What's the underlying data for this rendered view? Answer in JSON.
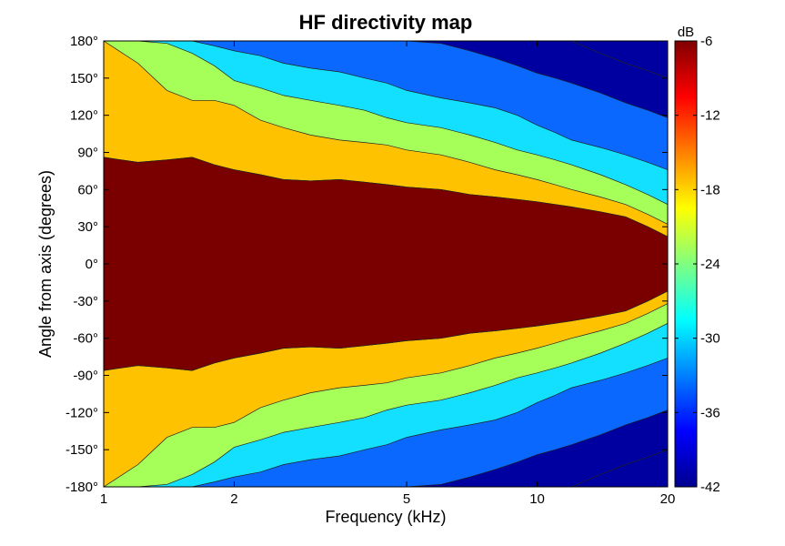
{
  "chart_data": {
    "type": "heatmap",
    "title": "HF directivity map",
    "xlabel": "Frequency (kHz)",
    "ylabel": "Angle from axis (degrees)",
    "x_scale": "log",
    "xlim": [
      1,
      20
    ],
    "ylim": [
      -180,
      180
    ],
    "x_ticks": [
      1,
      2,
      5,
      10,
      20
    ],
    "x_tick_labels": [
      "1",
      "2",
      "5",
      "10",
      "20"
    ],
    "y_ticks": [
      180,
      150,
      120,
      90,
      60,
      30,
      0,
      -30,
      -60,
      -90,
      -120,
      -150,
      -180
    ],
    "y_tick_labels": [
      "180°",
      "150°",
      "120°",
      "90°",
      "60°",
      "30°",
      "0°",
      "-30°",
      "-60°",
      "-90°",
      "-120°",
      "-150°",
      "-180°"
    ],
    "grid": false,
    "colorbar": {
      "unit": "dB",
      "range": [
        -42,
        -6
      ],
      "ticks": [
        -6,
        -12,
        -18,
        -24,
        -30,
        -36,
        -42
      ],
      "tick_labels": [
        "-6",
        "-12",
        "-18",
        "-24",
        "-30",
        "-36",
        "-42"
      ],
      "level_colors": [
        "#7a0000",
        "#ff1a00",
        "#ffc200",
        "#a6ff59",
        "#13e0ff",
        "#0a68ff",
        "#0000a0"
      ],
      "gradient_stops": [
        "#00008f",
        "#0000ff",
        "#0080ff",
        "#00ffff",
        "#80ff80",
        "#ffff00",
        "#ff8000",
        "#ff0000",
        "#800000"
      ]
    },
    "contour_levels_db": [
      -12,
      -18,
      -24,
      -30,
      -36,
      -42
    ],
    "level_color_order": [
      "#7a0000",
      "#ff1a00",
      "#ffc200",
      "#a6ff59",
      "#13e0ff",
      "#0a68ff",
      "#0000a0"
    ],
    "frequency_khz": [
      1,
      1.2,
      1.4,
      1.6,
      1.8,
      2,
      2.3,
      2.6,
      3,
      3.5,
      4,
      4.5,
      5,
      6,
      7,
      8,
      9,
      10,
      11,
      12,
      14,
      16,
      18,
      20
    ],
    "contour_angles_deg": [
      [
        86,
        82,
        84,
        86,
        80,
        76,
        72,
        68,
        67,
        68,
        66,
        64,
        62,
        60,
        56,
        54,
        52,
        50,
        48,
        46,
        42,
        38,
        30,
        22
      ],
      [
        180,
        162,
        140,
        132,
        132,
        128,
        116,
        110,
        104,
        100,
        98,
        96,
        92,
        88,
        82,
        76,
        72,
        68,
        64,
        60,
        54,
        48,
        40,
        32
      ],
      [
        180,
        180,
        178,
        170,
        160,
        148,
        142,
        136,
        132,
        128,
        124,
        118,
        114,
        110,
        104,
        98,
        92,
        88,
        84,
        80,
        72,
        64,
        56,
        48
      ],
      [
        180,
        180,
        180,
        180,
        176,
        172,
        168,
        162,
        158,
        155,
        150,
        146,
        140,
        134,
        130,
        126,
        120,
        112,
        106,
        100,
        94,
        88,
        82,
        76
      ],
      [
        180,
        180,
        180,
        180,
        180,
        180,
        180,
        180,
        180,
        180,
        180,
        180,
        180,
        178,
        172,
        166,
        160,
        154,
        150,
        146,
        138,
        130,
        124,
        118
      ],
      [
        180,
        180,
        180,
        180,
        180,
        180,
        180,
        180,
        180,
        180,
        180,
        180,
        180,
        180,
        180,
        180,
        180,
        180,
        180,
        180,
        170,
        162,
        156,
        150
      ]
    ]
  }
}
